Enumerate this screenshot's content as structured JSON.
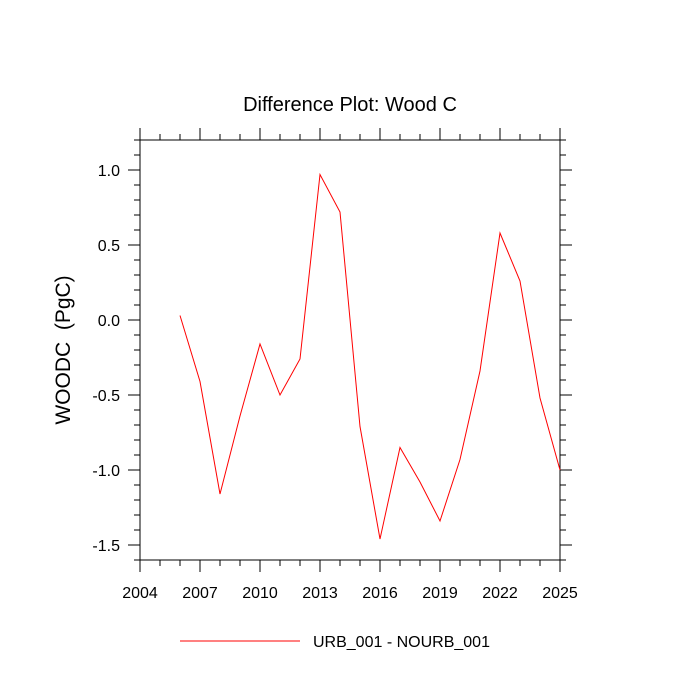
{
  "chart_data": {
    "type": "line",
    "title": "Difference Plot: Wood C",
    "xlabel": "",
    "ylabel": "WOODC  (PgC)",
    "xlim": [
      2004,
      2025
    ],
    "ylim": [
      -1.6,
      1.2
    ],
    "x_ticks": [
      "2004",
      "2007",
      "2010",
      "2013",
      "2016",
      "2019",
      "2022",
      "2025"
    ],
    "y_ticks": [
      "1.0",
      "0.5",
      "0.0",
      "-0.5",
      "-1.0",
      "-1.5"
    ],
    "grid": false,
    "legend_position": "bottom",
    "series": [
      {
        "name": "URB_001 - NOURB_001",
        "color": "#ff0000",
        "x": [
          2006,
          2007,
          2008,
          2009,
          2010,
          2011,
          2012,
          2013,
          2014,
          2015,
          2016,
          2017,
          2018,
          2019,
          2020,
          2021,
          2022,
          2023,
          2024,
          2025
        ],
        "y": [
          0.03,
          -0.41,
          -1.16,
          -0.64,
          -0.16,
          -0.5,
          -0.26,
          0.97,
          0.72,
          -0.71,
          -1.46,
          -0.85,
          -1.08,
          -1.34,
          -0.93,
          -0.34,
          0.58,
          0.26,
          -0.52,
          -1.0
        ]
      }
    ]
  }
}
